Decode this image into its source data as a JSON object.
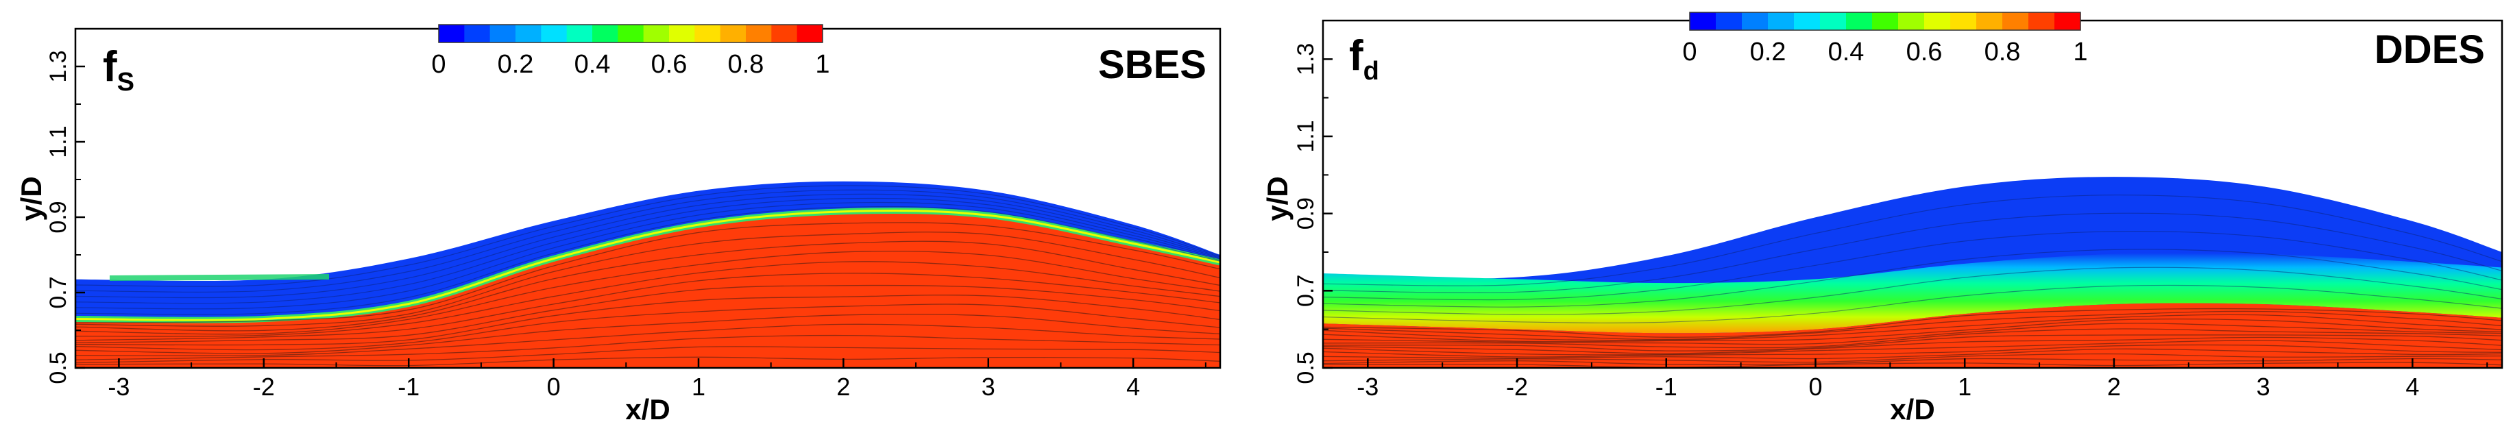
{
  "chart_data": [
    {
      "type": "heatmap",
      "panel_label": "f",
      "panel_subscript": "S",
      "model_label": "SBES",
      "xlabel": "x/D",
      "ylabel": "y/D",
      "xlim": [
        -3.3,
        4.6
      ],
      "ylim": [
        0.5,
        1.4
      ],
      "x_ticks": [
        "-3",
        "-2",
        "-1",
        "0",
        "1",
        "2",
        "3",
        "4"
      ],
      "y_ticks": [
        "0.5",
        "0.7",
        "0.9",
        "1.1",
        "1.3"
      ],
      "colorbar": {
        "range": [
          0,
          1
        ],
        "tick_labels": [
          "0",
          "0.2",
          "0.4",
          "0.6",
          "0.8",
          "1"
        ]
      },
      "upper_boundary": [
        [
          -3.3,
          0.735
        ],
        [
          -2,
          0.735
        ],
        [
          -1,
          0.79
        ],
        [
          0,
          0.89
        ],
        [
          1,
          0.97
        ],
        [
          2,
          0.995
        ],
        [
          3,
          0.97
        ],
        [
          4,
          0.88
        ],
        [
          4.6,
          0.8
        ]
      ],
      "interface": [
        [
          -3.3,
          0.63
        ],
        [
          -2,
          0.63
        ],
        [
          -1,
          0.67
        ],
        [
          0,
          0.79
        ],
        [
          1,
          0.88
        ],
        [
          2,
          0.915
        ],
        [
          3,
          0.905
        ],
        [
          4,
          0.83
        ],
        [
          4.6,
          0.78
        ]
      ]
    },
    {
      "type": "heatmap",
      "panel_label": "f",
      "panel_subscript": "d",
      "model_label": "DDES",
      "xlabel": "x/D",
      "ylabel": "y/D",
      "xlim": [
        -3.3,
        4.6
      ],
      "ylim": [
        0.5,
        1.4
      ],
      "x_ticks": [
        "-3",
        "-2",
        "-1",
        "0",
        "1",
        "2",
        "3",
        "4"
      ],
      "y_ticks": [
        "0.5",
        "0.7",
        "0.9",
        "1.1",
        "1.3"
      ],
      "colorbar": {
        "range": [
          0,
          1
        ],
        "tick_labels": [
          "0",
          "0.2",
          "0.4",
          "0.6",
          "0.8",
          "1"
        ]
      },
      "upper_boundary": [
        [
          -3.3,
          0.735
        ],
        [
          -2,
          0.735
        ],
        [
          -1,
          0.79
        ],
        [
          0,
          0.89
        ],
        [
          1,
          0.97
        ],
        [
          2,
          0.995
        ],
        [
          3,
          0.97
        ],
        [
          4,
          0.88
        ],
        [
          4.6,
          0.8
        ]
      ],
      "interface": [
        [
          -3.3,
          0.615
        ],
        [
          -2,
          0.6
        ],
        [
          -1,
          0.59
        ],
        [
          0,
          0.6
        ],
        [
          1,
          0.64
        ],
        [
          2,
          0.665
        ],
        [
          3,
          0.665
        ],
        [
          4,
          0.645
        ],
        [
          4.6,
          0.63
        ]
      ]
    }
  ],
  "colors": {
    "colormap": [
      "#0000ff",
      "#0040ff",
      "#0080ff",
      "#00b0ff",
      "#00e0ff",
      "#00ffc0",
      "#00ff60",
      "#40ff00",
      "#a0ff00",
      "#e0ff00",
      "#ffe000",
      "#ffb000",
      "#ff8000",
      "#ff4000",
      "#ff0000"
    ],
    "low": "#0c3df5",
    "high": "#ff3c0a"
  }
}
